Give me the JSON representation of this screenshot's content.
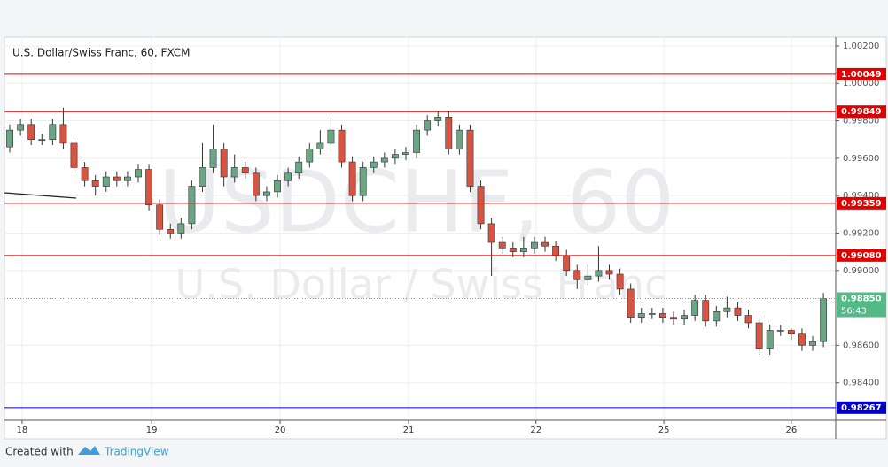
{
  "chart_data": {
    "type": "candlestick",
    "title": "U.S. Dollar/Swiss Franc, 60, FXCM",
    "watermark": "USDCHF, 60",
    "watermark_subtitle": "U.S. Dollar / Swiss Franc",
    "footer": "Created with",
    "brand": "TradingView",
    "countdown": "56:43",
    "up_color": "#6ba583",
    "down_color": "#d75442",
    "xlim": [
      0,
      155.3
    ],
    "xticks": [
      {
        "value": 3.3,
        "label": "18"
      },
      {
        "value": 27.5,
        "label": "19"
      },
      {
        "value": 51.5,
        "label": "20"
      },
      {
        "value": 75.5,
        "label": "21"
      },
      {
        "value": 99.3,
        "label": "22"
      },
      {
        "value": 123.2,
        "label": "25"
      },
      {
        "value": 147,
        "label": "26"
      }
    ],
    "ylim": [
      0.982,
      1.00247
    ],
    "yticks": [
      {
        "value": 1.002,
        "label": "1.00200"
      },
      {
        "value": 1.0,
        "label": "1.00000"
      },
      {
        "value": 0.998,
        "label": "0.99800"
      },
      {
        "value": 0.996,
        "label": "0.99600"
      },
      {
        "value": 0.994,
        "label": "0.99400"
      },
      {
        "value": 0.992,
        "label": "0.99200"
      },
      {
        "value": 0.99,
        "label": "0.99000"
      },
      {
        "value": 0.986,
        "label": "0.98600"
      },
      {
        "value": 0.984,
        "label": "0.98400"
      }
    ],
    "levels": [
      {
        "value": 1.00049,
        "label": "1.00049",
        "color": "#e00000"
      },
      {
        "value": 0.99849,
        "label": "0.99849",
        "color": "#e00000"
      },
      {
        "value": 0.99359,
        "label": "0.99359",
        "color": "#e00000"
      },
      {
        "value": 0.9908,
        "label": "0.99080",
        "color": "#e00000"
      },
      {
        "value": 0.98267,
        "label": "0.98267",
        "color": "#0000c8"
      }
    ],
    "last_price": {
      "value": 0.9885,
      "label": "0.98850",
      "color": "#53b987"
    },
    "x": [
      1,
      3,
      5,
      7,
      9,
      11,
      13,
      15,
      17,
      19,
      21,
      23,
      25,
      27,
      29,
      31,
      33,
      35,
      37,
      39,
      41,
      43,
      45,
      47,
      49,
      51,
      53,
      55,
      57,
      59,
      61,
      63,
      65,
      67,
      69,
      71,
      73,
      75,
      77,
      79,
      81,
      83,
      85,
      87,
      89,
      91,
      93,
      95,
      97,
      99,
      101,
      103,
      105,
      107,
      109,
      111,
      113,
      115,
      117,
      119,
      121,
      123,
      125,
      127,
      129,
      131,
      133,
      135,
      137,
      139,
      141,
      143,
      145,
      147,
      149,
      151,
      153
    ],
    "open": [
      0.9966,
      0.9975,
      0.9978,
      0.997,
      0.997,
      0.9978,
      0.9968,
      0.9955,
      0.9948,
      0.9945,
      0.995,
      0.9948,
      0.995,
      0.9954,
      0.9935,
      0.9922,
      0.992,
      0.9925,
      0.9945,
      0.9955,
      0.9965,
      0.995,
      0.9955,
      0.9952,
      0.994,
      0.9942,
      0.9948,
      0.9952,
      0.9958,
      0.9965,
      0.9968,
      0.9975,
      0.9958,
      0.994,
      0.9955,
      0.9958,
      0.996,
      0.9962,
      0.9963,
      0.9975,
      0.998,
      0.9982,
      0.9965,
      0.9975,
      0.9945,
      0.9925,
      0.9915,
      0.9912,
      0.991,
      0.9912,
      0.9915,
      0.9913,
      0.9908,
      0.99,
      0.9895,
      0.9897,
      0.99,
      0.9898,
      0.989,
      0.9875,
      0.9877,
      0.9877,
      0.9875,
      0.9874,
      0.9876,
      0.9884,
      0.9873,
      0.9878,
      0.988,
      0.9876,
      0.9872,
      0.9858,
      0.9868,
      0.9868,
      0.9866,
      0.986,
      0.9862
    ],
    "high": [
      0.9978,
      0.9981,
      0.9981,
      0.9973,
      0.9981,
      0.9987,
      0.9971,
      0.9958,
      0.9951,
      0.9953,
      0.9953,
      0.9953,
      0.9957,
      0.9957,
      0.9938,
      0.9925,
      0.9928,
      0.9948,
      0.9968,
      0.9978,
      0.9968,
      0.9962,
      0.9958,
      0.9955,
      0.9945,
      0.9951,
      0.9955,
      0.9961,
      0.9968,
      0.9975,
      0.9982,
      0.9978,
      0.9961,
      0.9958,
      0.9961,
      0.9963,
      0.9965,
      0.9966,
      0.9978,
      0.9983,
      0.9985,
      0.9985,
      0.9978,
      0.9978,
      0.9948,
      0.9928,
      0.9918,
      0.9915,
      0.9918,
      0.9918,
      0.9918,
      0.9916,
      0.9911,
      0.9903,
      0.9903,
      0.9913,
      0.9903,
      0.9901,
      0.9893,
      0.988,
      0.988,
      0.988,
      0.9878,
      0.9879,
      0.9887,
      0.9887,
      0.9881,
      0.9886,
      0.9883,
      0.9879,
      0.9875,
      0.9871,
      0.9871,
      0.9869,
      0.9869,
      0.9865,
      0.9888
    ],
    "low": [
      0.9963,
      0.9972,
      0.9967,
      0.9967,
      0.9967,
      0.9965,
      0.9952,
      0.9945,
      0.994,
      0.9942,
      0.9945,
      0.9945,
      0.9947,
      0.9932,
      0.9919,
      0.9917,
      0.9917,
      0.9922,
      0.9942,
      0.9952,
      0.9945,
      0.9947,
      0.9949,
      0.9937,
      0.9937,
      0.9939,
      0.9945,
      0.9949,
      0.9955,
      0.9962,
      0.9965,
      0.9955,
      0.9937,
      0.9937,
      0.9952,
      0.9955,
      0.9957,
      0.9959,
      0.996,
      0.9972,
      0.9977,
      0.9962,
      0.9962,
      0.9942,
      0.9922,
      0.9897,
      0.9909,
      0.9907,
      0.9907,
      0.9909,
      0.991,
      0.9905,
      0.9897,
      0.989,
      0.9892,
      0.9894,
      0.9895,
      0.9887,
      0.9872,
      0.9872,
      0.9874,
      0.9872,
      0.9871,
      0.9871,
      0.9873,
      0.987,
      0.987,
      0.9875,
      0.9873,
      0.9869,
      0.9855,
      0.9855,
      0.9865,
      0.9863,
      0.9857,
      0.9857,
      0.9859
    ],
    "close": [
      0.9975,
      0.9978,
      0.997,
      0.997,
      0.9978,
      0.9968,
      0.9955,
      0.9948,
      0.9945,
      0.995,
      0.9948,
      0.995,
      0.9954,
      0.9935,
      0.9922,
      0.992,
      0.9925,
      0.9945,
      0.9955,
      0.9965,
      0.995,
      0.9955,
      0.9952,
      0.994,
      0.9942,
      0.9948,
      0.9952,
      0.9958,
      0.9965,
      0.9968,
      0.9975,
      0.9958,
      0.994,
      0.9955,
      0.9958,
      0.996,
      0.9962,
      0.9963,
      0.9975,
      0.998,
      0.9982,
      0.9965,
      0.9975,
      0.9945,
      0.9925,
      0.9915,
      0.9912,
      0.991,
      0.9912,
      0.9915,
      0.9913,
      0.9908,
      0.99,
      0.9895,
      0.9897,
      0.99,
      0.9898,
      0.989,
      0.9875,
      0.9877,
      0.9877,
      0.9875,
      0.9874,
      0.9876,
      0.9884,
      0.9873,
      0.9878,
      0.988,
      0.9876,
      0.9872,
      0.9858,
      0.9868,
      0.9868,
      0.9866,
      0.986,
      0.9862,
      0.9885
    ]
  }
}
